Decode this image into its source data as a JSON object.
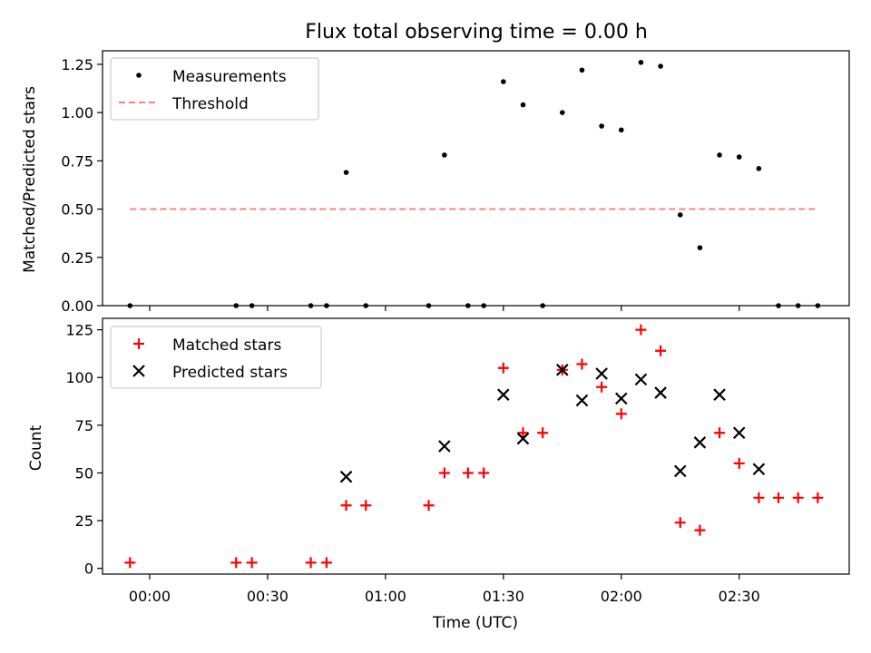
{
  "chart_data": [
    {
      "type": "scatter",
      "title": "Flux total observing time = 0.00 h",
      "xlabel": "",
      "ylabel": "Matched/Predicted stars",
      "xlim": [
        "23:48",
        "02:58"
      ],
      "ylim": [
        0,
        1.32
      ],
      "yticks": [
        0.0,
        0.25,
        0.5,
        0.75,
        1.0,
        1.25
      ],
      "yticklabels": [
        "0.00",
        "0.25",
        "0.50",
        "0.75",
        "1.00",
        "1.25"
      ],
      "xticks": [
        "00:00",
        "00:30",
        "01:00",
        "01:30",
        "02:00",
        "02:30"
      ],
      "show_xticklabels": false,
      "legend_position": "upper left",
      "series": [
        {
          "name": "Measurements",
          "marker": "dot",
          "color": "#000000",
          "x": [
            "23:55",
            "00:22",
            "00:26",
            "00:41",
            "00:45",
            "00:50",
            "00:55",
            "01:11",
            "01:15",
            "01:21",
            "01:25",
            "01:30",
            "01:35",
            "01:40",
            "01:45",
            "01:50",
            "01:55",
            "02:00",
            "02:05",
            "02:10",
            "02:15",
            "02:20",
            "02:25",
            "02:30",
            "02:35",
            "02:40",
            "02:45",
            "02:50"
          ],
          "y": [
            0,
            0,
            0,
            0,
            0,
            0.69,
            0,
            0,
            0.78,
            0,
            0,
            1.16,
            1.04,
            0,
            1.0,
            1.22,
            0.93,
            0.91,
            1.26,
            1.24,
            0.47,
            0.3,
            0.78,
            0.77,
            0.71,
            0,
            0,
            0
          ]
        },
        {
          "name": "Threshold",
          "marker": "dashed-line",
          "color": "#ff7f7f",
          "x": [
            "23:55",
            "02:50"
          ],
          "y": [
            0.5,
            0.5
          ]
        }
      ]
    },
    {
      "type": "scatter",
      "title": "",
      "xlabel": "Time (UTC)",
      "ylabel": "Count",
      "xlim": [
        "23:48",
        "02:58"
      ],
      "ylim": [
        -3,
        131
      ],
      "yticks": [
        0,
        25,
        50,
        75,
        100,
        125
      ],
      "yticklabels": [
        "0",
        "25",
        "50",
        "75",
        "100",
        "125"
      ],
      "xticks": [
        "00:00",
        "00:30",
        "01:00",
        "01:30",
        "02:00",
        "02:30"
      ],
      "xticklabels": [
        "00:00",
        "00:30",
        "01:00",
        "01:30",
        "02:00",
        "02:30"
      ],
      "show_xticklabels": true,
      "legend_position": "upper left",
      "series": [
        {
          "name": "Matched stars",
          "marker": "plus",
          "color": "#ff0000",
          "x": [
            "23:55",
            "00:22",
            "00:26",
            "00:41",
            "00:45",
            "00:50",
            "00:55",
            "01:11",
            "01:15",
            "01:21",
            "01:25",
            "01:30",
            "01:35",
            "01:40",
            "01:45",
            "01:50",
            "01:55",
            "02:00",
            "02:05",
            "02:10",
            "02:15",
            "02:20",
            "02:25",
            "02:30",
            "02:35",
            "02:40",
            "02:45",
            "02:50"
          ],
          "y": [
            3,
            3,
            3,
            3,
            3,
            33,
            33,
            33,
            50,
            50,
            50,
            105,
            71,
            71,
            104,
            107,
            95,
            81,
            125,
            114,
            24,
            20,
            71,
            55,
            37,
            37,
            37,
            37
          ]
        },
        {
          "name": "Predicted stars",
          "marker": "x",
          "color": "#000000",
          "x": [
            "00:50",
            "01:15",
            "01:30",
            "01:35",
            "01:45",
            "01:50",
            "01:55",
            "02:00",
            "02:05",
            "02:10",
            "02:15",
            "02:20",
            "02:25",
            "02:30",
            "02:35"
          ],
          "y": [
            48,
            64,
            91,
            68,
            104,
            88,
            102,
            89,
            99,
            92,
            51,
            66,
            91,
            71,
            52
          ]
        }
      ]
    }
  ]
}
